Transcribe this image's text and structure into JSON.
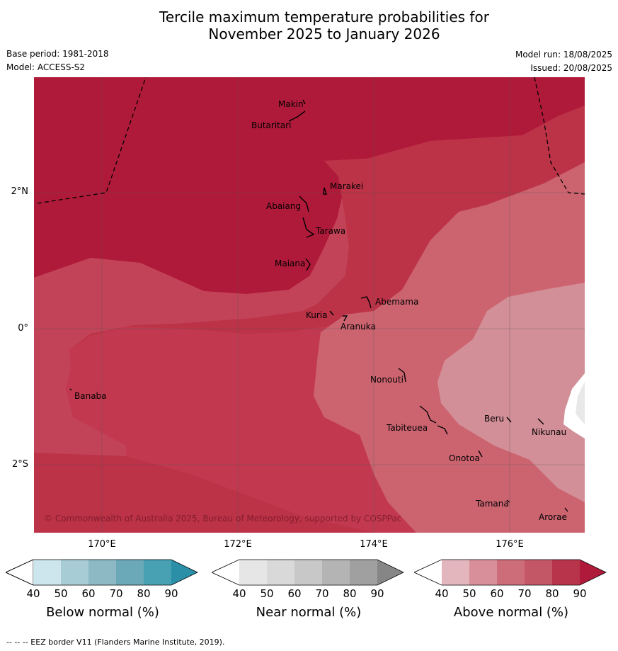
{
  "title_line1": "Tercile maximum temperature probabilities for",
  "title_line2": "November 2025 to January 2026",
  "base_period": "Base period: 1981-2018",
  "model": "Model: ACCESS-S2",
  "model_run": "Model run: 18/08/2025",
  "issued": "Issued: 20/08/2025",
  "copyright": "© Commonwealth of Australia 2025, Bureau of Meteorology, supported by COSPPac",
  "footnote": "--  --  -- EEZ border V11 (Flanders Marine Institute, 2019).",
  "lat_labels": [
    "2°N",
    "0°",
    "2°S"
  ],
  "lon_labels": [
    "170°E",
    "172°E",
    "174°E",
    "176°E"
  ],
  "islands": [
    "Makin",
    "Butaritari",
    "Marakei",
    "Abaiang",
    "Tarawa",
    "Maiana",
    "Abemama",
    "Kuria",
    "Aranuka",
    "Banaba",
    "Nonouti",
    "Tabiteuea",
    "Beru",
    "Nikunau",
    "Onotoa",
    "Tamana",
    "Arorae"
  ],
  "colorbars": [
    {
      "label": "Below normal (%)",
      "ticks": [
        "40",
        "50",
        "60",
        "70",
        "80",
        "90"
      ],
      "colors": [
        "#ffffff",
        "#cde5ec",
        "#a8ccd5",
        "#8db9c5",
        "#6ba8b8",
        "#47a1b2",
        "#2a8fa7"
      ]
    },
    {
      "label": "Near normal (%)",
      "ticks": [
        "40",
        "50",
        "60",
        "70",
        "80",
        "90"
      ],
      "colors": [
        "#ffffff",
        "#e6e6e6",
        "#d9d9d9",
        "#c8c8c8",
        "#b4b4b4",
        "#a0a0a0",
        "#868686"
      ]
    },
    {
      "label": "Above normal (%)",
      "ticks": [
        "40",
        "50",
        "60",
        "70",
        "80",
        "90"
      ],
      "colors": [
        "#ffffff",
        "#e3b6be",
        "#d88f99",
        "#cc6d79",
        "#c45766",
        "#b8344b",
        "#b01a3a"
      ]
    }
  ]
}
